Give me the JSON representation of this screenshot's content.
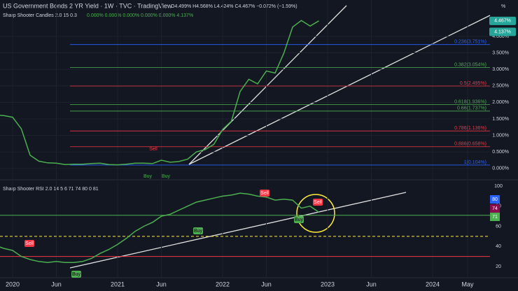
{
  "chart_data": [
    {
      "type": "line",
      "title": "US Government Bonds 2 YR Yield · 1W · TVC · TradingView",
      "subtitle": "O4.499% H4.568% L4.424% C4.467% −0.072% (−1.59%)",
      "indicator": "Sharp Shooter Candles 2.0 15 0.3",
      "indicator_values": "0.000% 0.000% 0.000% 0.000% 0.000% 4.137%",
      "unit_label": "%",
      "x": [
        "2019-11",
        "2019-12",
        "2020-01",
        "2020-02",
        "2020-03",
        "2020-04",
        "2020-05",
        "2020-06",
        "2020-07",
        "2020-08",
        "2020-09",
        "2020-10",
        "2020-11",
        "2020-12",
        "2021-01",
        "2021-02",
        "2021-03",
        "2021-04",
        "2021-05",
        "2021-06",
        "2021-07",
        "2021-08",
        "2021-09",
        "2021-10",
        "2021-11",
        "2021-12",
        "2022-01",
        "2022-02",
        "2022-03",
        "2022-04",
        "2022-05",
        "2022-06",
        "2022-07",
        "2022-08",
        "2022-09",
        "2022-10",
        "2022-11",
        "2022-12"
      ],
      "series": [
        {
          "color": "#4caf50",
          "values": [
            1.62,
            1.6,
            1.55,
            1.2,
            0.4,
            0.22,
            0.17,
            0.16,
            0.12,
            0.13,
            0.13,
            0.15,
            0.16,
            0.12,
            0.11,
            0.13,
            0.16,
            0.16,
            0.15,
            0.25,
            0.19,
            0.21,
            0.28,
            0.5,
            0.57,
            0.73,
            1.18,
            1.43,
            2.33,
            2.7,
            2.56,
            2.95,
            2.89,
            3.49,
            4.28,
            4.48,
            4.31,
            4.47
          ]
        }
      ],
      "xlim": [
        "2019-11",
        "2024-08"
      ],
      "xticks": [
        {
          "value": "2020-01",
          "label": "2020"
        },
        {
          "value": "2020-06",
          "label": "Jun"
        },
        {
          "value": "2021-01",
          "label": "2021"
        },
        {
          "value": "2021-06",
          "label": "Jun"
        },
        {
          "value": "2022-01",
          "label": "2022"
        },
        {
          "value": "2022-06",
          "label": "Jun"
        },
        {
          "value": "2023-01",
          "label": "2023"
        },
        {
          "value": "2023-06",
          "label": "Jun"
        },
        {
          "value": "2024-01",
          "label": "2024"
        },
        {
          "value": "2024-05",
          "label": "May"
        }
      ],
      "ylim": [
        -0.3,
        5.1
      ],
      "yticks": [
        {
          "value": 0,
          "label": "0.000%"
        },
        {
          "value": 0.5,
          "label": "0.500%"
        },
        {
          "value": 1,
          "label": "1.000%"
        },
        {
          "value": 1.5,
          "label": "1.500%"
        },
        {
          "value": 2,
          "label": "2.000%"
        },
        {
          "value": 2.5,
          "label": "2.500%"
        },
        {
          "value": 3,
          "label": "3.000%"
        },
        {
          "value": 3.5,
          "label": "3.500%"
        },
        {
          "value": 4,
          "label": "4.000%"
        }
      ],
      "fib_levels": [
        {
          "value": 3.751,
          "label": "0.236(3.751%)",
          "color": "#2962ff"
        },
        {
          "value": 3.054,
          "label": "0.382(3.054%)",
          "color": "#4caf50"
        },
        {
          "value": 2.495,
          "label": "0.5(2.495%)",
          "color": "#f23645"
        },
        {
          "value": 1.936,
          "label": "0.618(1.936%)",
          "color": "#4caf50"
        },
        {
          "value": 1.737,
          "label": "0.66(1.737%)",
          "color": "#4caf50"
        },
        {
          "value": 1.136,
          "label": "0.786(1.136%)",
          "color": "#f23645"
        },
        {
          "value": 0.658,
          "label": "0.886(0.658%)",
          "color": "#f23645"
        },
        {
          "value": 0.104,
          "label": "1(0.104%)",
          "color": "#2962ff"
        }
      ],
      "price_tags": [
        {
          "value": 4.467,
          "label": "4.467%",
          "color": "#26a69a"
        },
        {
          "value": 4.137,
          "label": "4.137%",
          "color": "#26a69a"
        }
      ],
      "annotations": [
        "Sell",
        "Buy",
        "Buy"
      ]
    },
    {
      "type": "line",
      "title": "Sharp Shooter RSI 2.0 14 5 6 71 74 80 0 81",
      "x": [
        "2019-11",
        "2019-12",
        "2020-01",
        "2020-02",
        "2020-03",
        "2020-04",
        "2020-05",
        "2020-06",
        "2020-07",
        "2020-08",
        "2020-09",
        "2020-10",
        "2020-11",
        "2020-12",
        "2021-01",
        "2021-02",
        "2021-03",
        "2021-04",
        "2021-05",
        "2021-06",
        "2021-07",
        "2021-08",
        "2021-09",
        "2021-10",
        "2021-11",
        "2021-12",
        "2022-01",
        "2022-02",
        "2022-03",
        "2022-04",
        "2022-05",
        "2022-06",
        "2022-07",
        "2022-08",
        "2022-09",
        "2022-10",
        "2022-11",
        "2022-12"
      ],
      "series": [
        {
          "color": "#4caf50",
          "values": [
            41,
            38,
            36,
            30,
            27,
            25,
            24,
            25,
            24,
            24,
            25,
            28,
            33,
            37,
            42,
            48,
            55,
            60,
            64,
            70,
            72,
            76,
            80,
            84,
            86,
            88,
            90,
            91,
            93,
            92,
            90,
            89,
            86,
            87,
            86,
            78,
            80,
            74
          ]
        }
      ],
      "ylim": [
        10,
        105
      ],
      "yticks": [
        20,
        40,
        60,
        80,
        100
      ],
      "levels": [
        {
          "value": 71,
          "color": "#4caf50",
          "style": "solid"
        },
        {
          "value": 50,
          "color": "#ffeb3b",
          "style": "dashed"
        },
        {
          "value": 30,
          "color": "#f23645",
          "style": "solid"
        }
      ],
      "tags": [
        {
          "value": 80,
          "label": "80",
          "color": "#2962ff"
        },
        {
          "value": 74,
          "label": "74",
          "color": "#880e4f"
        },
        {
          "value": 71,
          "label": "71",
          "color": "#4caf50"
        }
      ],
      "annotations": [
        "Sell",
        "Sell",
        "Sell",
        "Buy",
        "Buy",
        "Buy"
      ]
    }
  ]
}
